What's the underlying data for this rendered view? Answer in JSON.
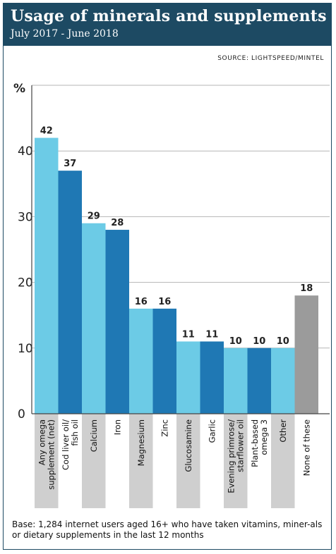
{
  "header": {
    "title": "Usage of minerals and supplements",
    "subtitle": "July 2017 - June 2018"
  },
  "source": "SOURCE: LIGHTSPEED/MINTEL",
  "footnote": "Base: 1,284 internet users aged 16+ who have taken vitamins, miner-als or dietary supplements in the last 12 months",
  "colors": {
    "header_bg": "#1d4a63",
    "bar_light": "#6ccbe6",
    "bar_dark": "#1f78b4",
    "bar_grey": "#9b9b9b",
    "label_band": "#cfcfcf"
  },
  "chart_data": {
    "type": "bar",
    "ylabel": "%",
    "ylim": [
      0,
      50
    ],
    "yticks": [
      0,
      10,
      20,
      30,
      40
    ],
    "grid": true,
    "categories": [
      [
        "Any omega",
        "supplement (net)"
      ],
      [
        "Cod liver oil/",
        "fish oil"
      ],
      [
        "Calcium"
      ],
      [
        "Iron"
      ],
      [
        "Magnesium"
      ],
      [
        "Zinc"
      ],
      [
        "Glucosamine"
      ],
      [
        "Garlic"
      ],
      [
        "Evening primrose/",
        "starflower oil"
      ],
      [
        "Plant-based",
        "omega 3"
      ],
      [
        "Other"
      ],
      [
        "None of these"
      ]
    ],
    "values": [
      42,
      37,
      29,
      28,
      16,
      16,
      11,
      11,
      10,
      10,
      10,
      18
    ],
    "value_labels": [
      "42",
      "37",
      "29",
      "28",
      "16",
      "16",
      "11",
      "11",
      "10",
      "10",
      "10",
      "18"
    ],
    "bar_colors": [
      "light",
      "dark",
      "light",
      "dark",
      "light",
      "dark",
      "light",
      "dark",
      "light",
      "dark",
      "light",
      "grey"
    ]
  }
}
